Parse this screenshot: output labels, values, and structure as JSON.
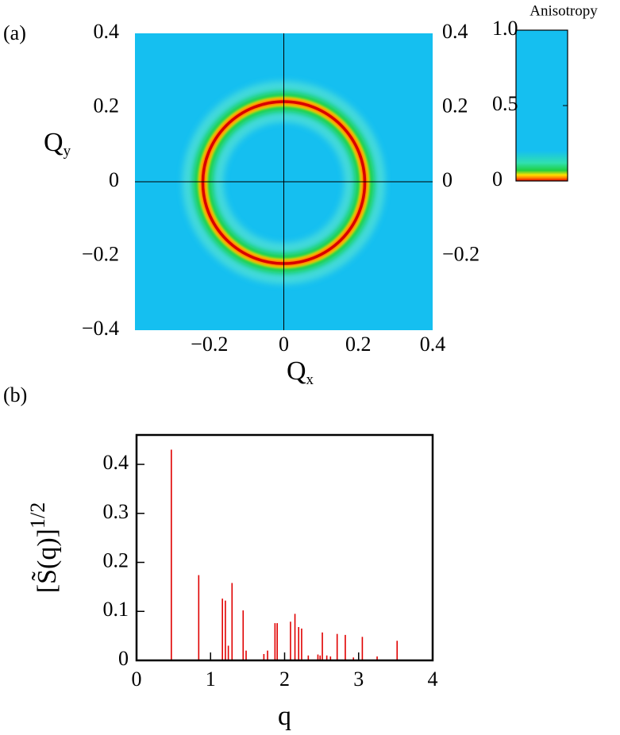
{
  "chart_data": [
    {
      "type": "heatmap",
      "panel_label": "(a)",
      "xlabel": "Q",
      "xlabel_sub": "x",
      "ylabel": "Q",
      "ylabel_sub": "y",
      "xlim": [
        -0.4,
        0.4
      ],
      "ylim": [
        -0.4,
        0.4
      ],
      "xticks": [
        {
          "value": -0.2,
          "label": "−0.2"
        },
        0,
        0.2,
        0.4
      ],
      "yticks": [
        {
          "value": -0.4,
          "label": "−0.4"
        },
        {
          "value": -0.2,
          "label": "−0.2"
        },
        0,
        0.2,
        0.4
      ],
      "y2ticks": [
        {
          "value": -0.2,
          "label": "−0.2"
        },
        0,
        0.2,
        0.4
      ],
      "colorbar": {
        "label": "Anisotropy",
        "lim": [
          0,
          1
        ],
        "ticks": [
          0,
          0.5,
          {
            "value": 1,
            "label": "1.0"
          }
        ]
      }
    },
    {
      "type": "stem",
      "panel_label": "(b)",
      "xlabel": "q",
      "ylabel": "[S̃(q)]",
      "ylabel_sup": "1/2",
      "color": "#e00000",
      "xlim": [
        0,
        4
      ],
      "ylim": [
        0,
        0.46
      ],
      "xticks": [
        0,
        1,
        2,
        3,
        4
      ],
      "yticks": [
        0,
        0.1,
        0.2,
        0.3,
        0.4
      ],
      "x": [
        0.47,
        0.84,
        1.16,
        1.2,
        1.24,
        1.29,
        1.44,
        1.48,
        1.72,
        1.77,
        1.87,
        1.9,
        2.08,
        2.14,
        2.19,
        2.23,
        2.32,
        2.45,
        2.48,
        2.51,
        2.57,
        2.62,
        2.71,
        2.82,
        2.93,
        3.05,
        3.25,
        3.52
      ],
      "values": [
        0.43,
        0.174,
        0.126,
        0.122,
        0.03,
        0.158,
        0.102,
        0.02,
        0.013,
        0.02,
        0.076,
        0.076,
        0.079,
        0.095,
        0.068,
        0.065,
        0.01,
        0.012,
        0.01,
        0.057,
        0.01,
        0.008,
        0.054,
        0.052,
        0.006,
        0.048,
        0.008,
        0.04
      ]
    }
  ]
}
